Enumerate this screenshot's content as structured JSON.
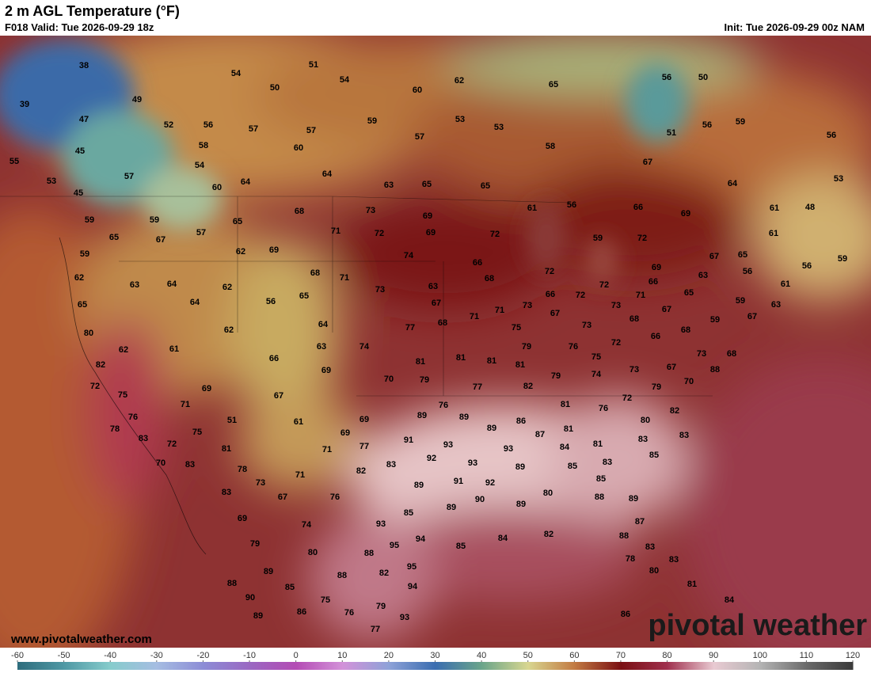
{
  "header": {
    "title": "2 m AGL Temperature (°F)",
    "valid": "F018 Valid: Tue 2026-09-29 18z",
    "init": "Init: Tue 2026-09-29 00z NAM"
  },
  "map": {
    "temperatures": [
      38,
      51,
      54,
      54,
      50,
      60,
      62,
      65,
      56,
      50,
      39,
      49,
      47,
      52,
      56,
      57,
      57,
      59,
      53,
      53,
      56,
      59,
      56,
      45,
      58,
      60,
      57,
      58,
      51,
      55,
      57,
      54,
      64,
      67,
      53,
      53,
      45,
      60,
      64,
      63,
      65,
      65,
      64,
      59,
      59,
      65,
      68,
      73,
      69,
      61,
      56,
      66,
      69,
      61,
      48,
      65,
      67,
      57,
      71,
      72,
      69,
      72,
      59,
      72,
      61,
      59,
      62,
      69,
      74,
      66,
      67,
      65,
      56,
      59,
      62,
      63,
      64,
      62,
      68,
      71,
      73,
      63,
      68,
      72,
      72,
      66,
      69,
      63,
      56,
      61,
      65,
      64,
      56,
      65,
      67,
      71,
      73,
      66,
      72,
      73,
      71,
      65,
      59,
      63,
      67,
      80,
      62,
      64,
      77,
      68,
      71,
      75,
      67,
      68,
      68,
      59,
      67,
      62,
      61,
      63,
      74,
      79,
      76,
      73,
      72,
      66,
      73,
      68,
      82,
      66,
      69,
      81,
      81,
      81,
      81,
      75,
      74,
      73,
      67,
      88,
      72,
      69,
      70,
      79,
      79,
      77,
      82,
      79,
      70,
      75,
      71,
      67,
      76,
      81,
      76,
      72,
      76,
      51,
      61,
      69,
      89,
      89,
      86,
      80,
      82,
      78,
      75,
      69,
      81,
      83,
      83,
      72,
      91,
      93,
      89,
      87,
      83,
      81,
      71,
      77,
      84,
      81,
      70,
      83,
      92,
      93,
      93,
      85,
      83,
      85,
      78,
      71,
      82,
      83,
      89,
      73,
      89,
      91,
      92,
      85,
      83,
      67,
      76,
      89,
      90,
      89,
      80,
      88,
      89,
      69,
      85,
      74,
      93,
      87,
      79,
      95,
      94,
      85,
      84,
      82,
      88,
      83,
      80,
      88,
      78,
      83,
      89,
      82,
      95,
      80,
      88,
      85,
      88,
      94,
      81,
      90,
      75,
      79,
      84,
      89,
      86,
      76,
      93,
      86,
      77
    ]
  },
  "footer": {
    "website": "www.pivotalweather.com",
    "logo": "pivotal weather"
  },
  "colorbar": {
    "ticks": [
      -60,
      -50,
      -40,
      -30,
      -20,
      -10,
      0,
      10,
      20,
      30,
      40,
      50,
      60,
      70,
      80,
      90,
      100,
      110,
      120
    ],
    "colors": [
      "#2e6d7d",
      "#4f98a4",
      "#86cccc",
      "#a6bde2",
      "#8c8cd6",
      "#9a68c2",
      "#b44bb4",
      "#d392d9",
      "#8ea2d8",
      "#3a6db0",
      "#6aa58a",
      "#d8d690",
      "#c27a42",
      "#7a0f12",
      "#a0304e",
      "#e9cad2",
      "#b4b4b4",
      "#6a6a6a",
      "#3a3a3a"
    ]
  }
}
